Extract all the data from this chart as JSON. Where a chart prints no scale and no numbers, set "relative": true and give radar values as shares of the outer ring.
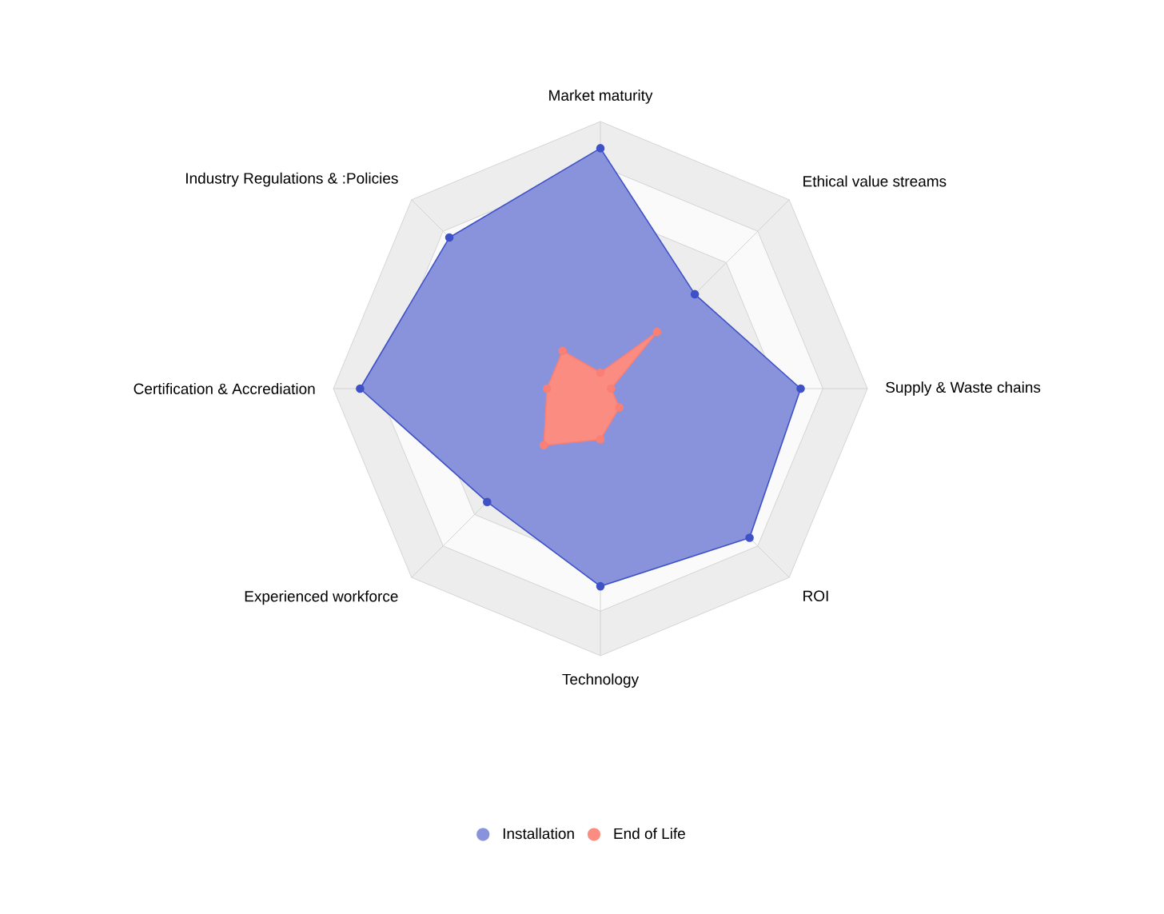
{
  "chart_data": {
    "type": "radar",
    "relative": true,
    "grid": true,
    "legend": "bottom",
    "marker": "circle",
    "categories": [
      "Market maturity",
      "Ethical value streams",
      "Supply & Waste chains",
      "ROI",
      "Technology",
      "Experienced workforce",
      "Certification & Accrediation",
      "Industry Regulations & :Policies"
    ],
    "series": [
      {
        "name": "Installation",
        "color": "#3f51c7",
        "values": [
          0.9,
          0.5,
          0.75,
          0.79,
          0.74,
          0.6,
          0.9,
          0.8
        ]
      },
      {
        "name": "End of Life",
        "color": "#fa7f74",
        "values": [
          0.06,
          0.3,
          0.04,
          0.1,
          0.19,
          0.3,
          0.2,
          0.2
        ]
      }
    ]
  }
}
